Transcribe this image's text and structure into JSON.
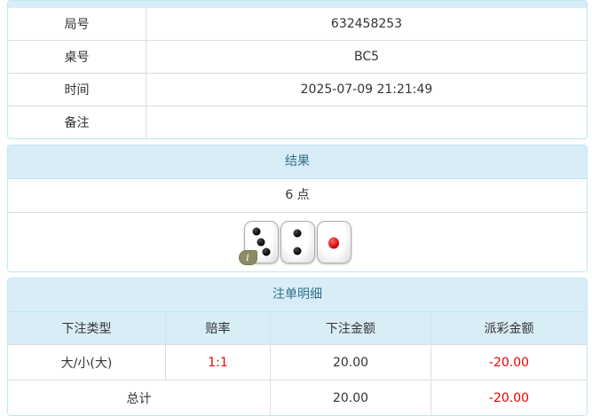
{
  "colors": {
    "panel_border": "#bce8f1",
    "heading_bg": "#d9edf7",
    "heading_text": "#31708f",
    "row_border": "#dddddd",
    "body_text": "#333333",
    "negative_text": "#ee0000",
    "badge_bg": "#8d8a66"
  },
  "info_table": {
    "rows": [
      {
        "label": "局号",
        "value": "632458253"
      },
      {
        "label": "桌号",
        "value": "BC5"
      },
      {
        "label": "时间",
        "value": "2025-07-09 21:21:49"
      },
      {
        "label": "备注",
        "value": ""
      }
    ]
  },
  "result_panel": {
    "title": "结果",
    "points": "6 点",
    "dice": [
      3,
      2,
      1
    ],
    "info_badge": "i"
  },
  "bets_panel": {
    "title": "注单明细",
    "columns": [
      "下注类型",
      "赔率",
      "下注金额",
      "派彩金额"
    ],
    "rows": [
      {
        "bet_type": "大/小(大)",
        "odds": "1:1",
        "bet_amount": "20.00",
        "payout": "-20.00"
      }
    ],
    "total": {
      "label": "总计",
      "bet_amount": "20.00",
      "payout": "-20.00"
    }
  }
}
